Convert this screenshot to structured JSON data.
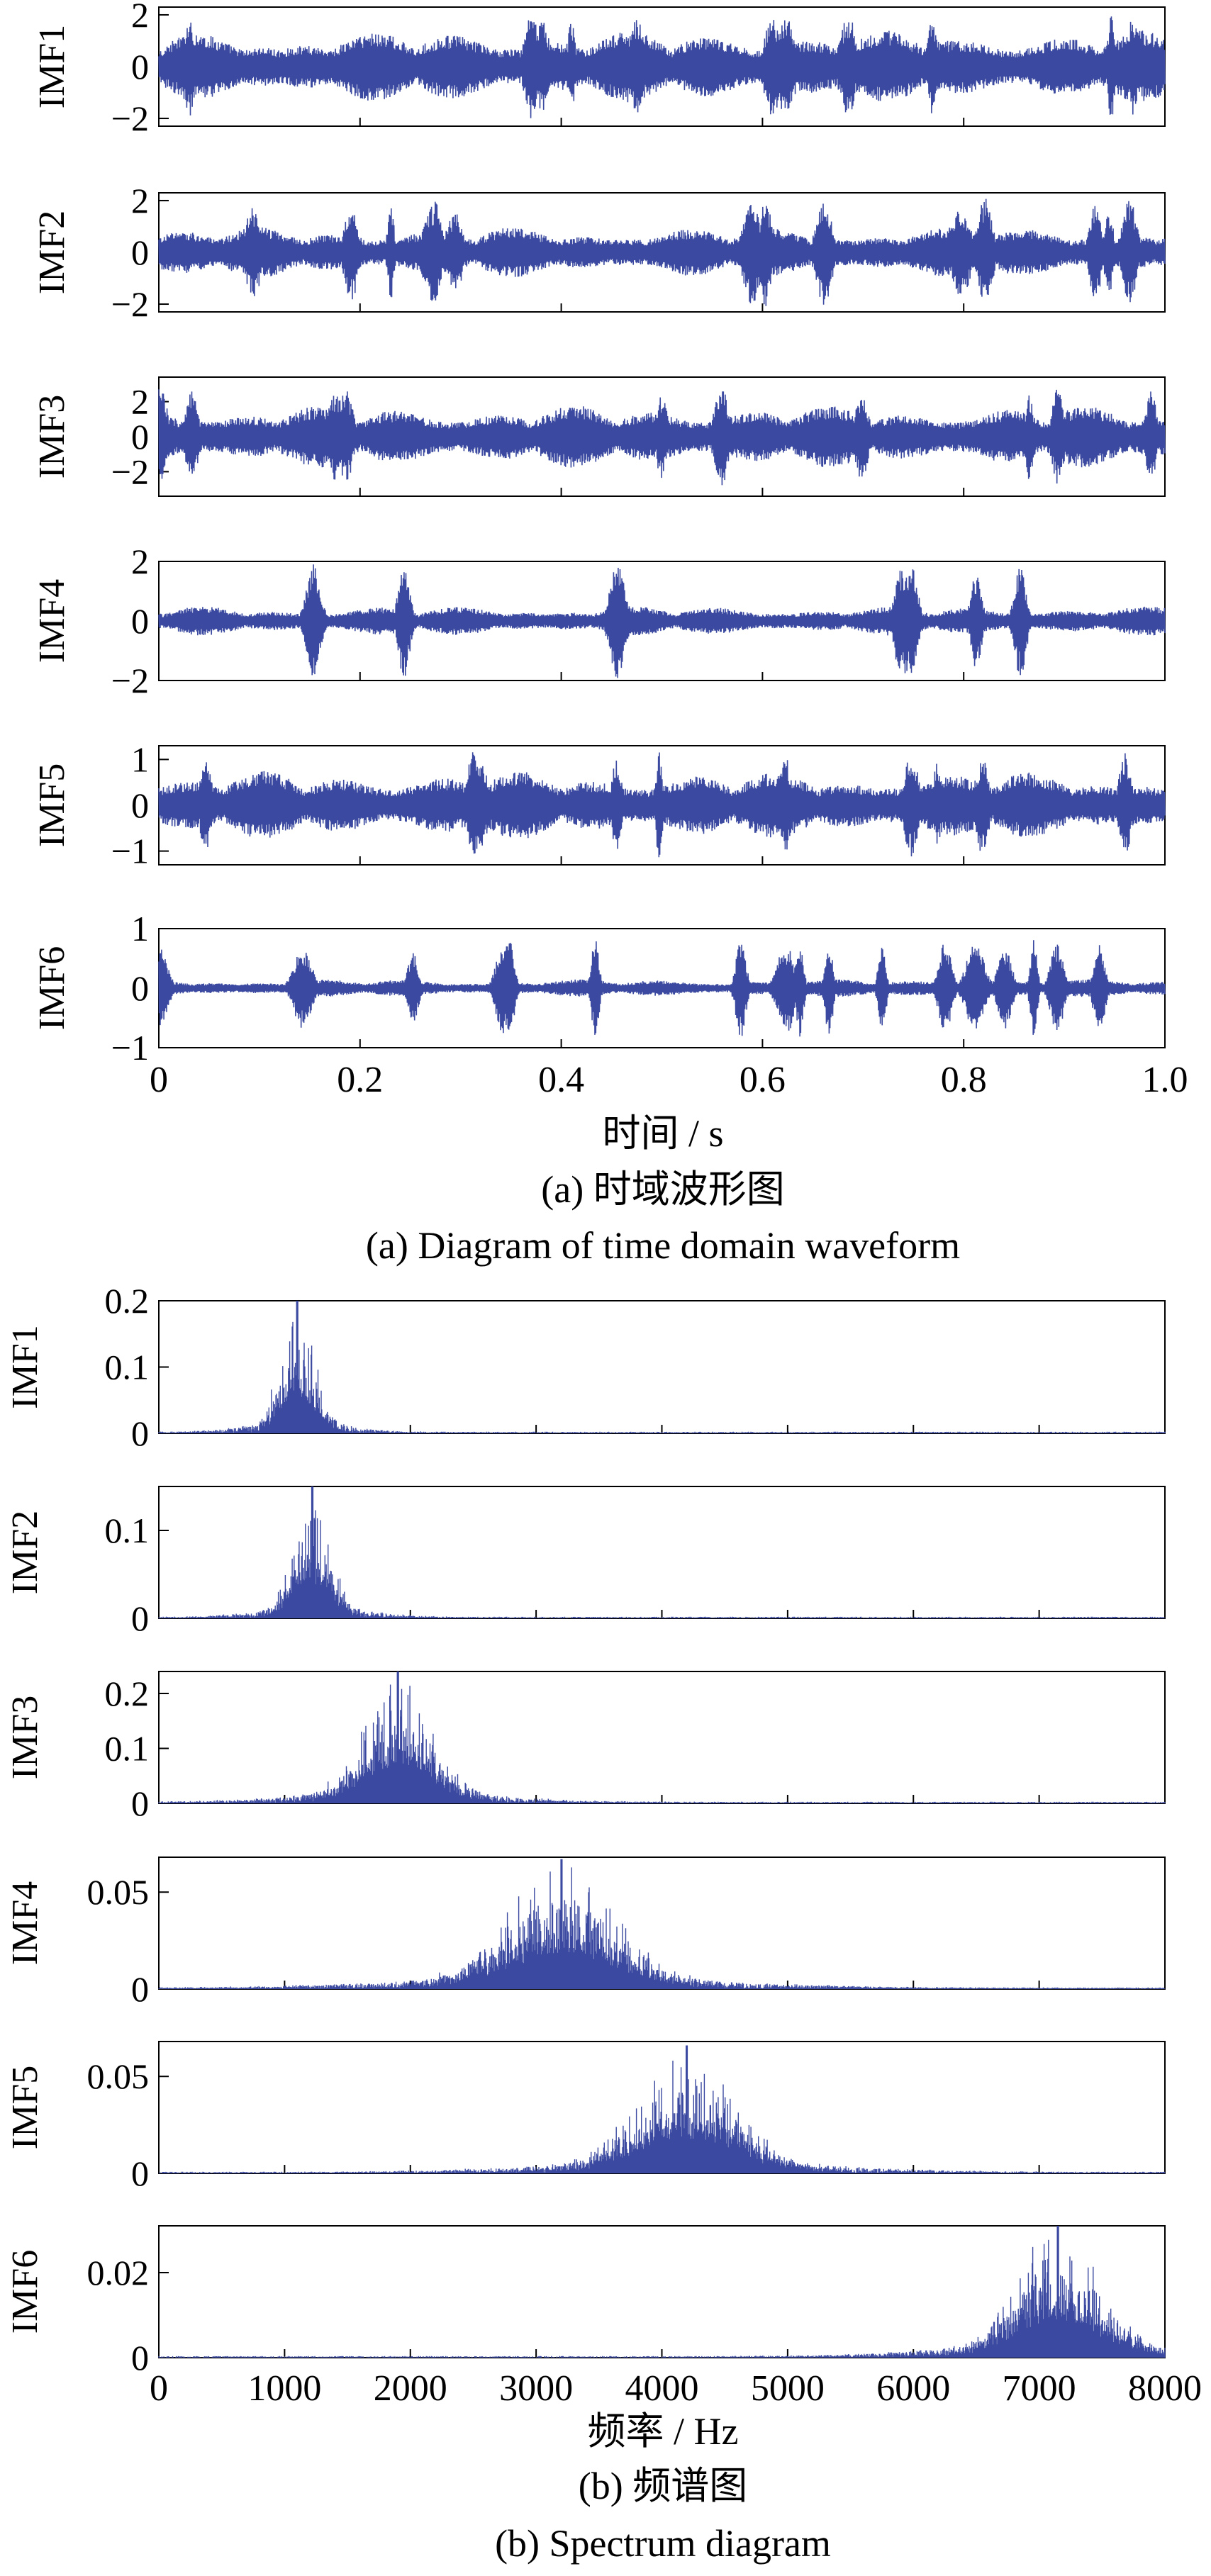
{
  "figure_a": {
    "caption_cn": "(a)  时域波形图",
    "caption_en": "(a)  Diagram of time domain waveform",
    "xlabel": "时间 / s"
  },
  "figure_b": {
    "caption_cn": "(b)  频谱图",
    "caption_en": "(b)  Spectrum diagram",
    "xlabel": "频率 / Hz"
  },
  "colors": {
    "signal": "#3b4aa0",
    "axis": "#000000"
  },
  "chart_data": [
    {
      "type": "line",
      "panel": "time-domain",
      "xlabel": "时间 / s",
      "xlim": [
        0,
        1.0
      ],
      "xticks": [
        0,
        0.2,
        0.4,
        0.6,
        0.8,
        1.0
      ],
      "xtick_labels": [
        "0",
        "0.2",
        "0.4",
        "0.6",
        "0.8",
        "1.0"
      ],
      "series": [
        {
          "name": "IMF1",
          "ylim": [
            -2.3,
            2.3
          ],
          "yticks": [
            -2,
            0,
            2
          ],
          "ytick_labels": [
            "−2",
            "0",
            "2"
          ],
          "amplitude": 1.4,
          "spike_count": 12,
          "spike_amplitude": 2.2
        },
        {
          "name": "IMF2",
          "ylim": [
            -2.3,
            2.3
          ],
          "yticks": [
            -2,
            0,
            2
          ],
          "ytick_labels": [
            "−2",
            "0",
            "2"
          ],
          "amplitude": 1.0,
          "spike_count": 14,
          "spike_amplitude": 2.1
        },
        {
          "name": "IMF3",
          "ylim": [
            -3.4,
            3.4
          ],
          "yticks": [
            -2,
            0,
            2
          ],
          "ytick_labels": [
            "−2",
            "0",
            "2"
          ],
          "amplitude": 1.8,
          "spike_count": 10,
          "spike_amplitude": 3.0
        },
        {
          "name": "IMF4",
          "ylim": [
            -2,
            2
          ],
          "yticks": [
            -2,
            0,
            2
          ],
          "ytick_labels": [
            "−2",
            "0",
            "2"
          ],
          "amplitude": 0.5,
          "spike_count": 8,
          "spike_amplitude": 2.0
        },
        {
          "name": "IMF5",
          "ylim": [
            -1.3,
            1.3
          ],
          "yticks": [
            -1,
            0,
            1
          ],
          "ytick_labels": [
            "−1",
            "0",
            "1"
          ],
          "amplitude": 0.75,
          "spike_count": 10,
          "spike_amplitude": 1.2
        },
        {
          "name": "IMF6",
          "ylim": [
            -1,
            1
          ],
          "yticks": [
            -1,
            0,
            1
          ],
          "ytick_labels": [
            "−1",
            "0",
            "1"
          ],
          "amplitude": 0.15,
          "spike_count": 18,
          "spike_amplitude": 0.85
        }
      ]
    },
    {
      "type": "line",
      "panel": "spectrum",
      "xlabel": "频率 / Hz",
      "xlim": [
        0,
        8000
      ],
      "xticks": [
        0,
        1000,
        2000,
        3000,
        4000,
        5000,
        6000,
        7000,
        8000
      ],
      "xtick_labels": [
        "0",
        "1000",
        "2000",
        "3000",
        "4000",
        "5000",
        "6000",
        "7000",
        "8000"
      ],
      "series": [
        {
          "name": "IMF1",
          "ylim": [
            0,
            0.2
          ],
          "yticks": [
            0,
            0.1,
            0.2
          ],
          "ytick_labels": [
            "0",
            "0.1",
            "0.2"
          ],
          "peak_hz": 1100,
          "peak_value": 0.2,
          "width_hz": 130
        },
        {
          "name": "IMF2",
          "ylim": [
            0,
            0.15
          ],
          "yticks": [
            0,
            0.1
          ],
          "ytick_labels": [
            "0",
            "0.1"
          ],
          "peak_hz": 1220,
          "peak_value": 0.15,
          "width_hz": 140
        },
        {
          "name": "IMF3",
          "ylim": [
            0,
            0.24
          ],
          "yticks": [
            0,
            0.1,
            0.2
          ],
          "ytick_labels": [
            "0",
            "0.1",
            "0.2"
          ],
          "peak_hz": 1900,
          "peak_value": 0.24,
          "width_hz": 260
        },
        {
          "name": "IMF4",
          "ylim": [
            0,
            0.068
          ],
          "yticks": [
            0,
            0.05
          ],
          "ytick_labels": [
            "0",
            "0.05"
          ],
          "peak_hz": 3200,
          "peak_value": 0.067,
          "width_hz": 420
        },
        {
          "name": "IMF5",
          "ylim": [
            0,
            0.068
          ],
          "yticks": [
            0,
            0.05
          ],
          "ytick_labels": [
            "0",
            "0.05"
          ],
          "peak_hz": 4200,
          "peak_value": 0.066,
          "width_hz": 380
        },
        {
          "name": "IMF6",
          "ylim": [
            0,
            0.031
          ],
          "yticks": [
            0,
            0.02
          ],
          "ytick_labels": [
            "0",
            "0.02"
          ],
          "peak_hz": 7150,
          "peak_value": 0.031,
          "width_hz": 330
        }
      ]
    }
  ]
}
